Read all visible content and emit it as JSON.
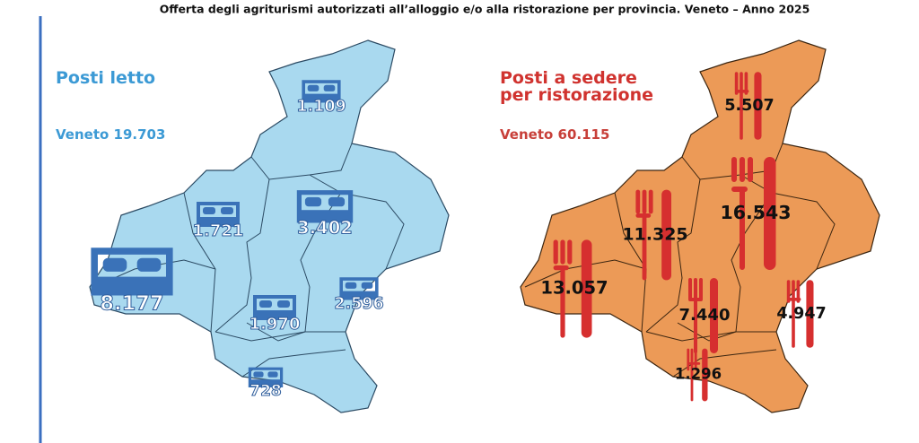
{
  "title": "Offerta degli agriturismi autorizzati all’alloggio e/o alla ristorazione per provincia. Veneto – Anno 2025",
  "maps": [
    {
      "heading_lines": [
        "Posti letto"
      ],
      "total": "Veneto 19.703",
      "labels": [
        "1.109",
        "1.721",
        "3.402",
        "8.177",
        "1.970",
        "2.596",
        "728"
      ]
    },
    {
      "heading_lines": [
        "Posti a sedere",
        "per ristorazione"
      ],
      "total": "Veneto 60.115",
      "labels": [
        "5.507",
        "11.325",
        "16.543",
        "13.057",
        "7.440",
        "4.947",
        "1.296"
      ]
    }
  ]
}
